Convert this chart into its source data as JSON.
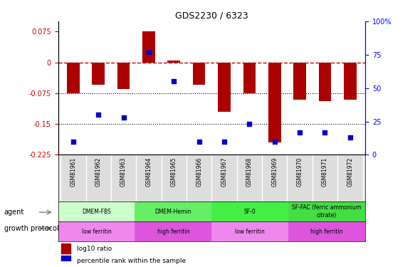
{
  "title": "GDS2230 / 6323",
  "samples": [
    "GSM81961",
    "GSM81962",
    "GSM81963",
    "GSM81964",
    "GSM81965",
    "GSM81966",
    "GSM81967",
    "GSM81968",
    "GSM81969",
    "GSM81970",
    "GSM81971",
    "GSM81972"
  ],
  "log10_ratio": [
    -0.075,
    -0.055,
    -0.065,
    0.075,
    0.005,
    -0.055,
    -0.12,
    -0.075,
    -0.195,
    -0.09,
    -0.095,
    -0.09
  ],
  "percentile_rank": [
    10,
    30,
    28,
    77,
    55,
    10,
    10,
    23,
    10,
    17,
    17,
    13
  ],
  "ylim_left": [
    -0.225,
    0.1
  ],
  "ylim_right": [
    0,
    100
  ],
  "yticks_left": [
    0.075,
    0,
    -0.075,
    -0.15,
    -0.225
  ],
  "yticks_right": [
    100,
    75,
    50,
    25,
    0
  ],
  "bar_color": "#aa0000",
  "square_color": "#0000cc",
  "hline_y": 0,
  "dotted_lines": [
    -0.075,
    -0.15
  ],
  "agent_groups": [
    {
      "label": "DMEM-FBS",
      "start": 0,
      "end": 2,
      "color": "#ccffcc"
    },
    {
      "label": "DMEM-Hemin",
      "start": 3,
      "end": 5,
      "color": "#66ee66"
    },
    {
      "label": "SF-0",
      "start": 6,
      "end": 8,
      "color": "#44ee44"
    },
    {
      "label": "SF-FAC (ferric ammonium\ncitrate)",
      "start": 9,
      "end": 11,
      "color": "#44dd44"
    }
  ],
  "protocol_groups": [
    {
      "label": "low ferritin",
      "start": 0,
      "end": 2,
      "color": "#ee88ee"
    },
    {
      "label": "high ferritin",
      "start": 3,
      "end": 5,
      "color": "#dd55dd"
    },
    {
      "label": "low ferritin",
      "start": 6,
      "end": 8,
      "color": "#ee88ee"
    },
    {
      "label": "high ferritin",
      "start": 9,
      "end": 11,
      "color": "#dd55dd"
    }
  ],
  "legend_items": [
    {
      "label": "log10 ratio",
      "color": "#aa0000",
      "marker": "s"
    },
    {
      "label": "percentile rank within the sample",
      "color": "#0000cc",
      "marker": "s"
    }
  ],
  "background_color": "#ffffff"
}
